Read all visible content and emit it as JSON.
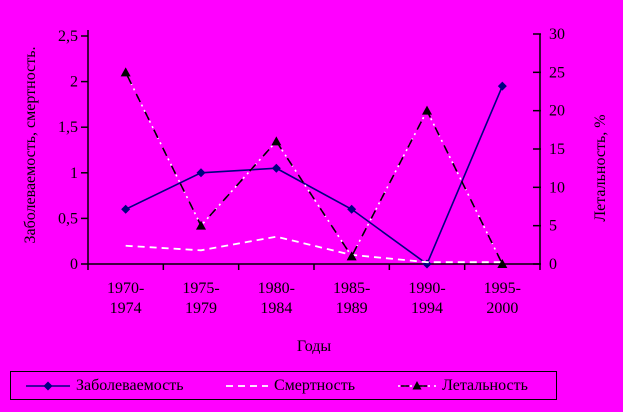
{
  "colors": {
    "background": "#FF00FF",
    "axis": "#000000",
    "text": "#000000",
    "incidence": "#000080",
    "mortality": "#FFFFFF",
    "lethality": "#000000"
  },
  "chart_data": {
    "type": "line",
    "title": "",
    "xlabel": "Годы",
    "ylabel_left": "Заболеваемость, смертность.",
    "ylabel_right": "Летальность, %",
    "categories": [
      [
        "1970-",
        "1974"
      ],
      [
        "1975-",
        "1979"
      ],
      [
        "1980-",
        "1984"
      ],
      [
        "1985-",
        "1989"
      ],
      [
        "1990-",
        "1994"
      ],
      [
        "1995-",
        "2000"
      ]
    ],
    "y_left": {
      "min": 0,
      "max": 2.5,
      "ticks": [
        "0",
        "0,5",
        "1",
        "1,5",
        "2",
        "2,5"
      ]
    },
    "y_right": {
      "min": 0,
      "max": 30,
      "ticks": [
        "0",
        "5",
        "10",
        "15",
        "20",
        "25",
        "30"
      ]
    },
    "grid": false,
    "legend_position": "bottom",
    "series": [
      {
        "name": "Заболеваемость",
        "axis": "left",
        "color": "#000080",
        "style": "solid",
        "marker": "diamond",
        "values": [
          0.6,
          1.0,
          1.05,
          0.6,
          0,
          1.95
        ]
      },
      {
        "name": "Смертность",
        "axis": "left",
        "color": "#FFFFFF",
        "style": "dashed",
        "marker": "none",
        "values": [
          0.2,
          0.15,
          0.3,
          0.1,
          0.02,
          0.02
        ]
      },
      {
        "name": "Летальность",
        "axis": "right",
        "color": "#000000",
        "style": "dashdot",
        "marker": "triangle",
        "values": [
          25,
          5,
          16,
          1,
          20,
          0
        ]
      }
    ]
  }
}
